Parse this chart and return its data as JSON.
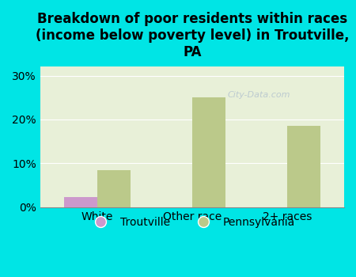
{
  "title": "Breakdown of poor residents within races\n(income below poverty level) in Troutville,\nPA",
  "categories": [
    "White",
    "Other race",
    "2+ races"
  ],
  "troutville_values": [
    2.2,
    0.0,
    0.0
  ],
  "pennsylvania_values": [
    8.5,
    25.0,
    18.5
  ],
  "troutville_color": "#cc99cc",
  "pennsylvania_color": "#bbc98a",
  "background_color": "#00e5e5",
  "plot_bg_color": "#e8f0d8",
  "bar_width": 0.35,
  "ylim": [
    0,
    32
  ],
  "yticks": [
    0,
    10,
    20,
    30
  ],
  "ytick_labels": [
    "0%",
    "10%",
    "20%",
    "30%"
  ],
  "legend_troutville": "Troutville",
  "legend_pennsylvania": "Pennsylvania",
  "title_fontsize": 12,
  "tick_fontsize": 10,
  "watermark": "City-Data.com"
}
